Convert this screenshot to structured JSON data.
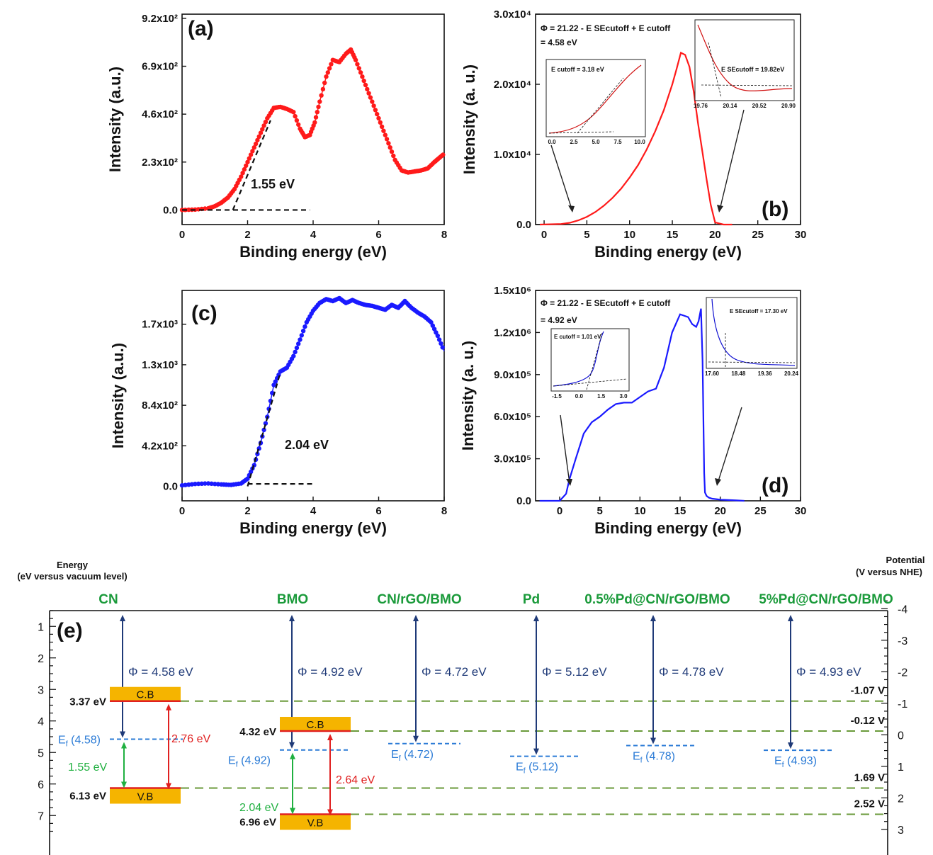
{
  "chart_data": [
    {
      "panel": "(a)",
      "type": "scatter",
      "xlabel": "Binding energy (eV)",
      "ylabel": "Intensity (a.u.)",
      "xlim": [
        0,
        8
      ],
      "ylim": [
        -70,
        940
      ],
      "xticks": [
        0,
        2,
        4,
        6,
        8
      ],
      "xtick_labels": [
        "0",
        "2",
        "4",
        "6",
        "8"
      ],
      "yticks": [
        0,
        230,
        460,
        690,
        920
      ],
      "ytick_labels": [
        "0.0",
        "2.3x10²",
        "4.6x10²",
        "6.9x10²",
        "9.2x10²"
      ],
      "color": "#ff1a1a",
      "series": [
        {
          "x": [
            0,
            0.4,
            0.8,
            1.0,
            1.2,
            1.4,
            1.6,
            1.8,
            2.0,
            2.2,
            2.4,
            2.6,
            2.8,
            3.0,
            3.2,
            3.4,
            3.6,
            3.75,
            3.9,
            4.05,
            4.2,
            4.4,
            4.6,
            4.8,
            5.0,
            5.15,
            5.3,
            5.5,
            5.7,
            5.9,
            6.1,
            6.3,
            6.5,
            6.7,
            6.9,
            7.1,
            7.3,
            7.5,
            7.7,
            7.85,
            8.0
          ],
          "y": [
            0,
            2,
            8,
            18,
            35,
            60,
            100,
            160,
            230,
            300,
            370,
            440,
            490,
            495,
            485,
            470,
            390,
            350,
            360,
            420,
            520,
            640,
            720,
            710,
            750,
            770,
            720,
            640,
            560,
            480,
            400,
            320,
            240,
            190,
            180,
            185,
            190,
            200,
            230,
            250,
            270
          ]
        }
      ],
      "fit_lines": [
        {
          "x": [
            1.55,
            2.7
          ],
          "y": [
            0,
            430
          ]
        },
        {
          "x": [
            0,
            3.9
          ],
          "y": [
            0,
            0
          ]
        }
      ],
      "annotations": [
        "1.55 eV"
      ]
    },
    {
      "panel": "(b)",
      "type": "line",
      "xlabel": "Binding energy (eV)",
      "ylabel": "Intensity (a. u.)",
      "xlim": [
        -1,
        30
      ],
      "ylim": [
        0,
        30000
      ],
      "xticks": [
        0,
        5,
        10,
        15,
        20,
        25,
        30
      ],
      "xtick_labels": [
        "0",
        "5",
        "10",
        "15",
        "20",
        "25",
        "30"
      ],
      "yticks": [
        0,
        10000,
        20000,
        30000
      ],
      "ytick_labels": [
        "0.0",
        "1.0x10⁴",
        "2.0x10⁴",
        "3.0x10⁴"
      ],
      "color": "#ff1a1a",
      "series": [
        {
          "x": [
            -0.5,
            2,
            3,
            4,
            5,
            6,
            7,
            8,
            9,
            10,
            11,
            12,
            13,
            14,
            15,
            15.5,
            16,
            16.5,
            17,
            17.5,
            18,
            18.5,
            19,
            19.5,
            20,
            21,
            22
          ],
          "y": [
            0,
            80,
            250,
            600,
            1100,
            1800,
            2700,
            3800,
            5100,
            6700,
            8500,
            10700,
            13300,
            16300,
            20000,
            22200,
            24500,
            24200,
            22500,
            19000,
            14500,
            10500,
            6500,
            2800,
            300,
            0,
            0
          ]
        }
      ],
      "formula": "Φ = 21.22 - E SEcutoff + E cutoff",
      "formula_value": "= 4.58 eV",
      "inset_left": {
        "label": "E cutoff = 3.18 eV",
        "xticks": [
          "0.0",
          "2.5",
          "5.0",
          "7.5",
          "10.0"
        ]
      },
      "inset_right": {
        "label": "E SEcutoff = 19.82eV",
        "xticks": [
          "19.76",
          "20.14",
          "20.52",
          "20.90"
        ]
      }
    },
    {
      "panel": "(c)",
      "type": "scatter",
      "xlabel": "Binding energy (eV)",
      "ylabel": "Intensity (a.u.)",
      "xlim": [
        0,
        8
      ],
      "ylim": [
        -150,
        2030
      ],
      "xticks": [
        0,
        2,
        4,
        6,
        8
      ],
      "xtick_labels": [
        "0",
        "2",
        "4",
        "6",
        "8"
      ],
      "yticks": [
        0,
        420,
        840,
        1260,
        1680
      ],
      "ytick_labels": [
        "0.0",
        "4.2x10²",
        "8.4x10²",
        "1.3x10³",
        "1.7x10³"
      ],
      "color": "#1a1aff",
      "series": [
        {
          "x": [
            0,
            0.4,
            0.8,
            1.2,
            1.5,
            1.8,
            2.0,
            2.2,
            2.4,
            2.6,
            2.8,
            3.0,
            3.2,
            3.4,
            3.6,
            3.8,
            4.0,
            4.2,
            4.4,
            4.6,
            4.8,
            5.0,
            5.2,
            5.4,
            5.6,
            5.8,
            6.0,
            6.2,
            6.4,
            6.6,
            6.8,
            7.0,
            7.2,
            7.4,
            7.6,
            7.8,
            8.0
          ],
          "y": [
            10,
            25,
            30,
            20,
            15,
            30,
            80,
            220,
            450,
            720,
            1050,
            1190,
            1230,
            1350,
            1520,
            1700,
            1820,
            1900,
            1940,
            1920,
            1950,
            1900,
            1930,
            1900,
            1880,
            1870,
            1850,
            1830,
            1880,
            1850,
            1920,
            1850,
            1800,
            1760,
            1700,
            1560,
            1400
          ]
        }
      ],
      "fit_lines": [
        {
          "x": [
            2.0,
            3.0
          ],
          "y": [
            0,
            1180
          ]
        },
        {
          "x": [
            2.0,
            4.0
          ],
          "y": [
            25,
            25
          ]
        }
      ],
      "annotations": [
        "2.04 eV"
      ]
    },
    {
      "panel": "(d)",
      "type": "line",
      "xlabel": "Binding energy (eV)",
      "ylabel": "Intensity (a. u.)",
      "xlim": [
        -3,
        30
      ],
      "ylim": [
        0,
        1500000
      ],
      "xticks": [
        0,
        5,
        10,
        15,
        20,
        25,
        30
      ],
      "xtick_labels": [
        "0",
        "5",
        "10",
        "15",
        "20",
        "25",
        "30"
      ],
      "yticks": [
        0,
        300000,
        600000,
        900000,
        1200000,
        1500000
      ],
      "ytick_labels": [
        "0.0",
        "3.0x10⁵",
        "6.0x10⁵",
        "9.0x10⁵",
        "1.2x10⁶",
        "1.5x10⁶"
      ],
      "color": "#1a1aff",
      "series": [
        {
          "x": [
            -2.5,
            0,
            0.8,
            1.2,
            2,
            3,
            4,
            5,
            6,
            7,
            8,
            9,
            10,
            11,
            12,
            13,
            14,
            15,
            16,
            16.5,
            17,
            17.3,
            17.6,
            17.8,
            18.0,
            18.1,
            18.3,
            18.6,
            19,
            20,
            22,
            23
          ],
          "y": [
            0,
            0,
            50000,
            150000,
            300000,
            480000,
            560000,
            600000,
            650000,
            690000,
            700000,
            700000,
            740000,
            780000,
            800000,
            950000,
            1200000,
            1330000,
            1310000,
            1260000,
            1240000,
            1280000,
            1370000,
            1000000,
            200000,
            60000,
            35000,
            22000,
            15000,
            8000,
            3000,
            0
          ]
        }
      ],
      "formula": "Φ = 21.22 - E SEcutoff + E cutoff",
      "formula_value": "= 4.92 eV",
      "inset_left": {
        "label": "E cutoff = 1.01 eV",
        "xticks": [
          "-1.5",
          "0.0",
          "1.5",
          "3.0"
        ]
      },
      "inset_right": {
        "label": "E SEcutoff = 17.30 eV",
        "xticks": [
          "17.60",
          "18.48",
          "19.36",
          "20.24"
        ]
      }
    },
    {
      "panel": "(e)",
      "type": "diagram",
      "left_axis_title": [
        "Energy",
        "(eV versus vacuum level)"
      ],
      "right_axis_title": [
        "Potential",
        "(V versus NHE)"
      ],
      "left_ticks": [
        1,
        2,
        3,
        4,
        5,
        6,
        7
      ],
      "left_tick_labels": [
        "1",
        "2",
        "3",
        "4",
        "5",
        "6",
        "7"
      ],
      "right_ticks": [
        -4,
        -3,
        -2,
        -1,
        0,
        1,
        2,
        3
      ],
      "right_tick_labels": [
        "-4",
        "-3",
        "-2",
        "-1",
        "0",
        "1",
        "2",
        "3"
      ],
      "columns": [
        {
          "name": "CN",
          "phi": "Φ = 4.58 eV",
          "ef": 4.58,
          "ef_label": "E",
          "ef_value": "(4.58)"
        },
        {
          "name": "BMO",
          "phi": "Φ = 4.92 eV",
          "ef": 4.92,
          "ef_label": "E",
          "ef_value": "(4.92)"
        },
        {
          "name": "CN/rGO/BMO",
          "phi": "Φ = 4.72 eV",
          "ef": 4.72,
          "ef_label": "E",
          "ef_value": "(4.72)"
        },
        {
          "name": "Pd",
          "phi": "Φ = 5.12 eV",
          "ef": 5.12,
          "ef_label": "E",
          "ef_value": "(5.12)"
        },
        {
          "name": "0.5%Pd@CN/rGO/BMO",
          "phi": "Φ = 4.78 eV",
          "ef": 4.78,
          "ef_label": "E",
          "ef_value": "(4.78)"
        },
        {
          "name": "5%Pd@CN/rGO/BMO",
          "phi": "Φ = 4.93 eV",
          "ef": 4.93,
          "ef_label": "E",
          "ef_value": "(4.93)"
        }
      ],
      "bands": [
        {
          "material": "CN",
          "cb": 3.37,
          "vb": 6.13,
          "cb_label": "3.37 eV",
          "vb_label": "6.13 eV",
          "gap": "2.76 eV",
          "ef_gap": "1.55 eV"
        },
        {
          "material": "BMO",
          "cb": 4.32,
          "vb": 6.96,
          "cb_label": "4.32 eV",
          "vb_label": "6.96 eV",
          "gap": "2.64 eV",
          "ef_gap": "2.04 eV"
        }
      ],
      "cb_text": "C.B",
      "vb_text": "V.B",
      "potential_labels": [
        "-1.07 V",
        "-0.12 V",
        "1.69 V",
        "2.52 V"
      ],
      "colors": {
        "title": "#1a9a3a",
        "arrow": "#1f3a78",
        "ef": "#2b7bd6",
        "gap": "#e02020",
        "efgap": "#20b040",
        "dashed": "#6a9a3a",
        "band": "#f5b400",
        "edge": "#e02020"
      }
    }
  ]
}
